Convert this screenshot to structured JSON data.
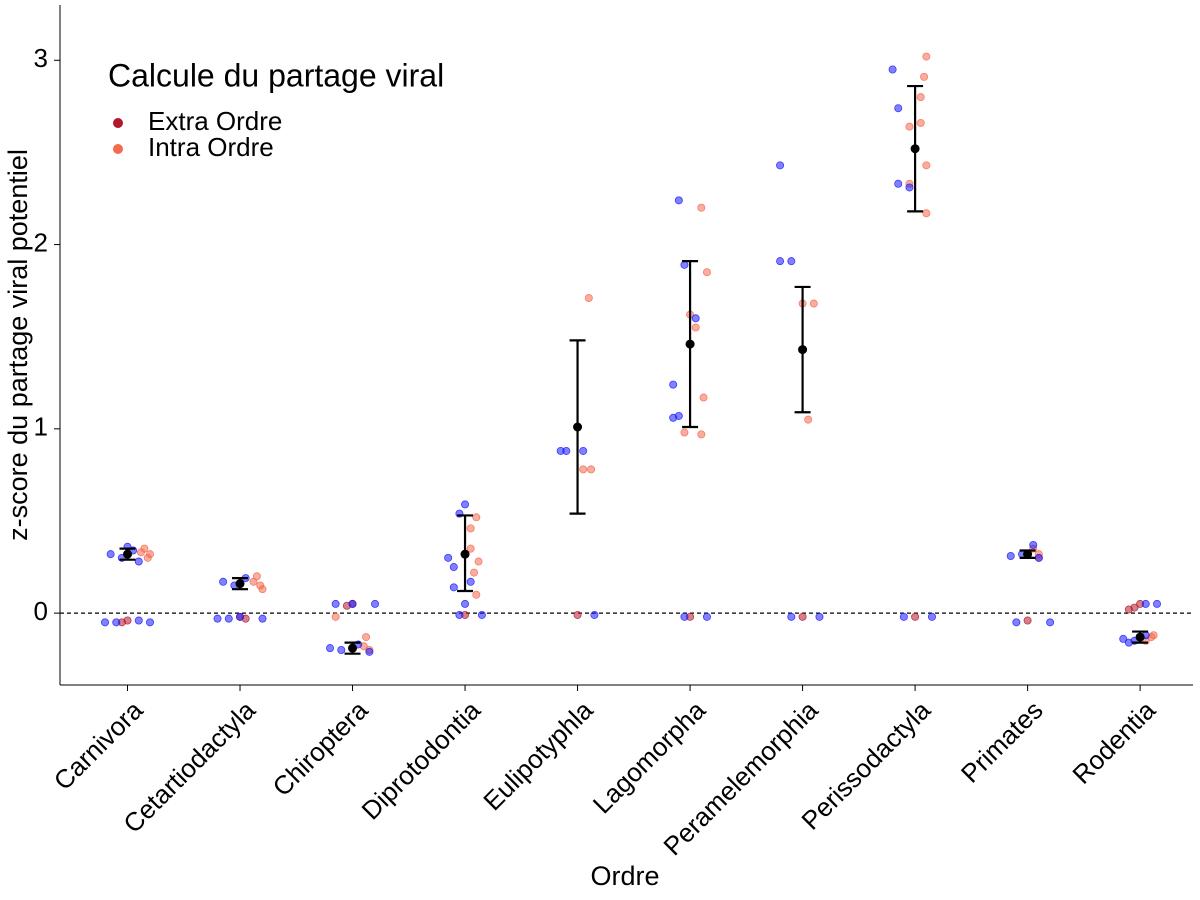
{
  "chart_data": {
    "type": "scatter",
    "legend_title": "Calcule du partage viral",
    "xlabel": "Ordre",
    "ylabel": "z-score du partage viral potentiel",
    "categories": [
      "Carnivora",
      "Cetartiodactyla",
      "Chiroptera",
      "Diprotodontia",
      "Eulipotyphla",
      "Lagomorpha",
      "Peramelemorphia",
      "Perissodactyla",
      "Primates",
      "Rodentia"
    ],
    "xticks": [
      1,
      2,
      3,
      4,
      5,
      6,
      7,
      8,
      9,
      10
    ],
    "xlim": [
      0.4,
      10.47
    ],
    "ylim": [
      -0.39,
      3.3
    ],
    "yticks": [
      0,
      1,
      2,
      3
    ],
    "hline": 0,
    "legend": "top-left",
    "series": [
      {
        "name": "Extra Ordre",
        "color": "#b2182b",
        "x": [
          1.0,
          0.95,
          2.0,
          2.05,
          3.0,
          2.95,
          4.0,
          5.0,
          6.0,
          7.0,
          8.0,
          9.0,
          10.0,
          9.95,
          9.9
        ],
        "values": [
          -0.04,
          -0.05,
          -0.02,
          -0.03,
          0.05,
          0.04,
          -0.01,
          -0.01,
          -0.02,
          -0.02,
          -0.02,
          -0.04,
          0.05,
          0.03,
          0.02
        ]
      },
      {
        "name": "Intra Ordre",
        "color": "#f4694f",
        "x": [
          1.12,
          1.18,
          1.15,
          1.2,
          2.12,
          2.18,
          2.15,
          2.2,
          3.1,
          3.15,
          3.12,
          2.85,
          4.1,
          4.05,
          4.08,
          4.1,
          4.05,
          4.12,
          5.1,
          5.05,
          5.12,
          6.1,
          6.15,
          6.0,
          6.05,
          6.12,
          5.95,
          6.1,
          7.0,
          7.1,
          7.05,
          8.1,
          8.08,
          8.05,
          7.95,
          8.05,
          8.1,
          8.1,
          7.95,
          9.1,
          9.05,
          9.1,
          10.1,
          10.05,
          10.12
        ],
        "values": [
          0.33,
          0.3,
          0.35,
          0.32,
          0.17,
          0.15,
          0.2,
          0.13,
          -0.18,
          -0.2,
          -0.13,
          -0.02,
          0.52,
          0.35,
          0.22,
          0.1,
          0.46,
          0.28,
          1.71,
          0.78,
          0.78,
          2.2,
          1.85,
          1.62,
          1.55,
          1.17,
          0.98,
          0.97,
          1.68,
          1.68,
          1.05,
          3.02,
          2.91,
          2.8,
          2.64,
          2.66,
          2.43,
          2.17,
          2.33,
          0.32,
          0.35,
          0.3,
          -0.13,
          -0.15,
          -0.12
        ]
      },
      {
        "color": "#1a1aff",
        "x": [
          0.85,
          0.95,
          1.05,
          1.1,
          1.0,
          0.9,
          0.8,
          1.2,
          1.1,
          1.85,
          1.95,
          2.05,
          2.0,
          1.9,
          1.8,
          2.2,
          2.8,
          2.9,
          3.05,
          3.2,
          2.85,
          3.0,
          3.15,
          3.95,
          4.0,
          3.9,
          4.05,
          3.85,
          3.95,
          4.15,
          4.0,
          3.9,
          4.85,
          4.9,
          5.05,
          5.15,
          5.9,
          5.95,
          5.85,
          5.9,
          6.05,
          5.85,
          5.95,
          6.15,
          6.8,
          6.9,
          6.8,
          6.9,
          7.15,
          7.8,
          7.85,
          7.95,
          7.85,
          7.9,
          8.15,
          8.85,
          8.95,
          9.05,
          9.1,
          9.2,
          8.9,
          9.85,
          9.95,
          10.05,
          10.15,
          10.05,
          9.9
        ],
        "values": [
          0.32,
          0.3,
          0.34,
          0.28,
          0.36,
          -0.05,
          -0.05,
          -0.05,
          -0.04,
          0.17,
          0.15,
          0.19,
          -0.02,
          -0.03,
          -0.03,
          -0.03,
          -0.19,
          -0.2,
          -0.17,
          0.05,
          0.05,
          0.05,
          -0.21,
          0.54,
          0.59,
          0.25,
          0.17,
          0.3,
          -0.01,
          -0.01,
          0.05,
          0.14,
          0.88,
          0.88,
          0.88,
          -0.01,
          2.24,
          1.89,
          1.24,
          1.07,
          1.6,
          1.06,
          -0.02,
          -0.02,
          2.43,
          1.91,
          1.91,
          -0.02,
          -0.02,
          2.95,
          2.74,
          2.31,
          2.33,
          -0.02,
          -0.02,
          0.31,
          0.32,
          0.37,
          0.3,
          -0.05,
          -0.05,
          -0.14,
          -0.15,
          0.05,
          0.05,
          -0.12,
          -0.16
        ]
      }
    ],
    "summary": {
      "color": "#000000",
      "means": [
        0.32,
        0.16,
        -0.19,
        0.32,
        1.01,
        1.46,
        1.43,
        2.52,
        0.32,
        -0.13
      ],
      "lower": [
        0.29,
        0.13,
        -0.22,
        0.12,
        0.54,
        1.01,
        1.09,
        2.18,
        0.3,
        -0.16
      ],
      "upper": [
        0.35,
        0.19,
        -0.16,
        0.53,
        1.48,
        1.91,
        1.77,
        2.86,
        0.34,
        -0.1
      ]
    }
  }
}
